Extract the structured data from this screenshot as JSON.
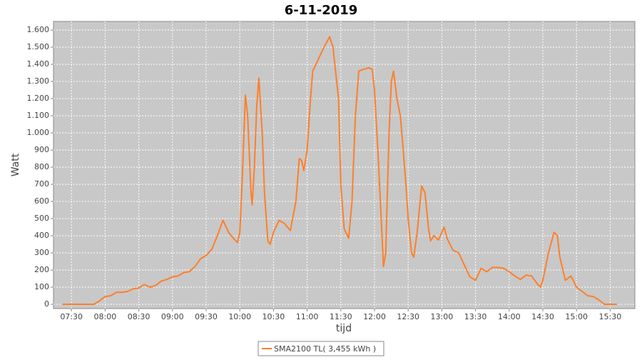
{
  "chart_data": {
    "type": "line",
    "title": "6-11-2019",
    "xlabel": "tijd",
    "ylabel": "Watt",
    "x": [
      "07:22",
      "07:50",
      "07:55",
      "08:00",
      "08:05",
      "08:10",
      "08:15",
      "08:20",
      "08:25",
      "08:30",
      "08:35",
      "08:40",
      "08:45",
      "08:50",
      "08:55",
      "09:00",
      "09:05",
      "09:10",
      "09:15",
      "09:20",
      "09:25",
      "09:30",
      "09:35",
      "09:40",
      "09:45",
      "09:50",
      "09:55",
      "09:58",
      "10:00",
      "10:02",
      "10:05",
      "10:07",
      "10:10",
      "10:11",
      "10:13",
      "10:15",
      "10:17",
      "10:20",
      "10:22",
      "10:25",
      "10:27",
      "10:30",
      "10:35",
      "10:40",
      "10:45",
      "10:50",
      "10:53",
      "10:55",
      "10:57",
      "11:00",
      "11:03",
      "11:05",
      "11:10",
      "11:15",
      "11:20",
      "11:23",
      "11:25",
      "11:28",
      "11:30",
      "11:33",
      "11:37",
      "11:40",
      "11:43",
      "11:46",
      "11:50",
      "11:55",
      "11:58",
      "12:00",
      "12:03",
      "12:06",
      "12:08",
      "12:10",
      "12:13",
      "12:15",
      "12:17",
      "12:20",
      "12:23",
      "12:25",
      "12:28",
      "12:30",
      "12:33",
      "12:35",
      "12:38",
      "12:42",
      "12:45",
      "12:48",
      "12:50",
      "12:53",
      "12:57",
      "13:00",
      "13:02",
      "13:05",
      "13:10",
      "13:15",
      "13:20",
      "13:25",
      "13:30",
      "13:35",
      "13:40",
      "13:45",
      "13:50",
      "13:55",
      "14:00",
      "14:05",
      "14:10",
      "14:15",
      "14:20",
      "14:25",
      "14:28",
      "14:30",
      "14:35",
      "14:40",
      "14:43",
      "14:45",
      "14:50",
      "14:55",
      "14:57",
      "15:00",
      "15:05",
      "15:10",
      "15:15",
      "15:20",
      "15:25",
      "15:36"
    ],
    "series": [
      {
        "name": "SMA2100 TL( 3,455 kWh )",
        "color": "#ff7f2a",
        "values": [
          0,
          0,
          20,
          45,
          50,
          70,
          70,
          75,
          90,
          95,
          115,
          100,
          110,
          135,
          145,
          160,
          165,
          185,
          190,
          220,
          265,
          285,
          320,
          400,
          490,
          420,
          380,
          360,
          420,
          700,
          1220,
          1100,
          650,
          580,
          800,
          1150,
          1320,
          1000,
          650,
          370,
          350,
          420,
          490,
          470,
          430,
          600,
          850,
          840,
          780,
          900,
          1200,
          1360,
          1430,
          1500,
          1560,
          1500,
          1380,
          1200,
          700,
          440,
          385,
          600,
          1100,
          1360,
          1370,
          1380,
          1370,
          1250,
          900,
          500,
          220,
          300,
          1000,
          1300,
          1360,
          1200,
          1100,
          950,
          700,
          500,
          300,
          275,
          420,
          690,
          650,
          450,
          370,
          400,
          375,
          420,
          450,
          380,
          315,
          300,
          230,
          160,
          140,
          210,
          190,
          215,
          215,
          210,
          190,
          165,
          145,
          170,
          165,
          120,
          100,
          140,
          300,
          420,
          400,
          280,
          140,
          165,
          140,
          100,
          75,
          50,
          45,
          25,
          0,
          0
        ]
      }
    ],
    "xlim": [
      "07:14",
      "15:52"
    ],
    "xticks": [
      "07:30",
      "08:00",
      "08:30",
      "09:00",
      "09:30",
      "10:00",
      "10:30",
      "11:00",
      "11:30",
      "12:00",
      "12:30",
      "13:00",
      "13:30",
      "14:00",
      "14:30",
      "15:00",
      "15:30"
    ],
    "ylim": [
      -25,
      1650
    ],
    "yticks": [
      0,
      100,
      200,
      300,
      400,
      500,
      600,
      700,
      800,
      900,
      {
        "value": 1000,
        "label": "1.000"
      },
      {
        "value": 1100,
        "label": "1.100"
      },
      {
        "value": 1200,
        "label": "1.200"
      },
      {
        "value": 1300,
        "label": "1.300"
      },
      {
        "value": 1400,
        "label": "1.400"
      },
      {
        "value": 1500,
        "label": "1.500"
      },
      {
        "value": 1600,
        "label": "1.600"
      }
    ],
    "grid": true
  }
}
